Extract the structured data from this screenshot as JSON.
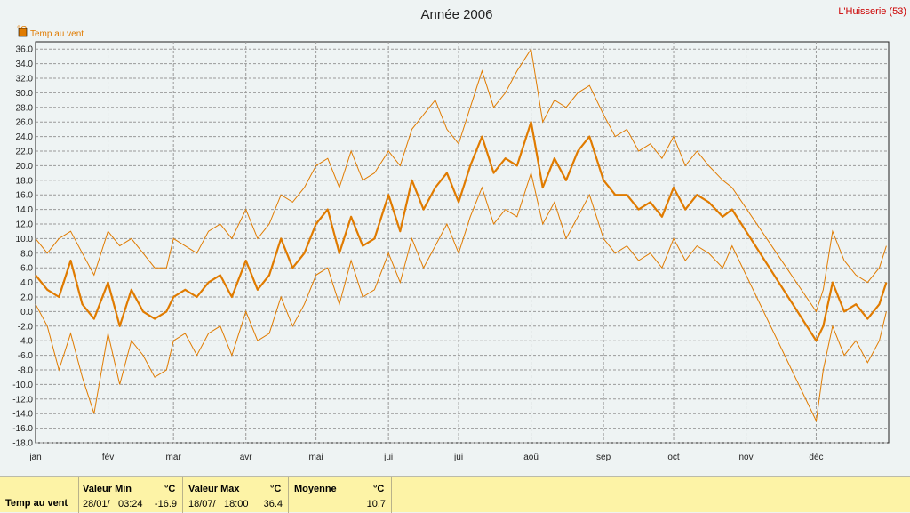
{
  "chart_data": {
    "type": "line",
    "title": "Année 2006",
    "location": "L'Huisserie (53)",
    "ylabel": "°C",
    "ylim": [
      -18,
      37
    ],
    "yticks": [
      "36.0",
      "34.0",
      "32.0",
      "30.0",
      "28.0",
      "26.0",
      "24.0",
      "22.0",
      "20.0",
      "18.0",
      "16.0",
      "14.0",
      "12.0",
      "10.0",
      "8.0",
      "6.0",
      "4.0",
      "2.0",
      "0.0",
      "-2.0",
      "-4.0",
      "-6.0",
      "-8.0",
      "-10.0",
      "-12.0",
      "-14.0",
      "-16.0",
      "-18.0"
    ],
    "months": [
      "jan",
      "fév",
      "mar",
      "avr",
      "mai",
      "jui",
      "jui",
      "aoû",
      "sep",
      "oct",
      "nov",
      "déc"
    ],
    "grid": true,
    "legend": "top-left",
    "series": [
      {
        "name": "Temp au vent",
        "color": "#e07b00",
        "days": [
          1,
          6,
          11,
          16,
          21,
          26,
          32,
          37,
          42,
          47,
          52,
          57,
          60,
          65,
          70,
          75,
          80,
          85,
          91,
          96,
          101,
          106,
          111,
          116,
          121,
          126,
          131,
          136,
          141,
          146,
          152,
          157,
          162,
          167,
          172,
          177,
          182,
          187,
          192,
          197,
          202,
          207,
          213,
          218,
          223,
          228,
          233,
          238,
          244,
          249,
          254,
          259,
          264,
          269,
          274,
          279,
          284,
          289,
          295,
          299,
          335,
          338,
          342,
          347,
          352,
          357,
          362,
          365
        ],
        "mean": [
          5,
          3,
          2,
          7,
          1,
          -1,
          4,
          -2,
          3,
          0,
          -1,
          0,
          2,
          3,
          2,
          4,
          5,
          2,
          7,
          3,
          5,
          10,
          6,
          8,
          12,
          14,
          8,
          13,
          9,
          10,
          16,
          11,
          18,
          14,
          17,
          19,
          15,
          20,
          24,
          19,
          21,
          20,
          26,
          17,
          21,
          18,
          22,
          24,
          18,
          16,
          16,
          14,
          15,
          13,
          17,
          14,
          16,
          15,
          13,
          14,
          -4,
          -2,
          4,
          0,
          1,
          -1,
          1,
          4
        ],
        "max": [
          10,
          8,
          10,
          11,
          8,
          5,
          11,
          9,
          10,
          8,
          6,
          6,
          10,
          9,
          8,
          11,
          12,
          10,
          14,
          10,
          12,
          16,
          15,
          17,
          20,
          21,
          17,
          22,
          18,
          19,
          22,
          20,
          25,
          27,
          29,
          25,
          23,
          28,
          33,
          28,
          30,
          33,
          36,
          26,
          29,
          28,
          30,
          31,
          27,
          24,
          25,
          22,
          23,
          21,
          24,
          20,
          22,
          20,
          18,
          17,
          0,
          3,
          11,
          7,
          5,
          4,
          6,
          9
        ],
        "min": [
          1,
          -2,
          -8,
          -3,
          -9,
          -14,
          -3,
          -10,
          -4,
          -6,
          -9,
          -8,
          -4,
          -3,
          -6,
          -3,
          -2,
          -6,
          0,
          -4,
          -3,
          2,
          -2,
          1,
          5,
          6,
          1,
          7,
          2,
          3,
          8,
          4,
          10,
          6,
          9,
          12,
          8,
          13,
          17,
          12,
          14,
          13,
          19,
          12,
          15,
          10,
          13,
          16,
          10,
          8,
          9,
          7,
          8,
          6,
          10,
          7,
          9,
          8,
          6,
          9,
          -15,
          -8,
          -2,
          -6,
          -4,
          -7,
          -4,
          0
        ]
      }
    ]
  },
  "stats": {
    "row_label": "Temp au vent",
    "min": {
      "header": "Valeur Min",
      "unit": "°C",
      "date": "28/01/",
      "time": "03:24",
      "value": "-16.9"
    },
    "max": {
      "header": "Valeur Max",
      "unit": "°C",
      "date": "18/07/",
      "time": "18:00",
      "value": "36.4"
    },
    "mean": {
      "header": "Moyenne",
      "unit": "°C",
      "value": "10.7"
    }
  }
}
